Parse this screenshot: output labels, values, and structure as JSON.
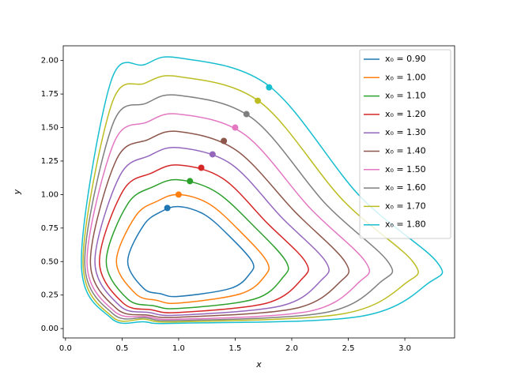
{
  "chart_data": {
    "type": "line",
    "xlabel": "x",
    "ylabel": "y",
    "xlim": [
      -0.02,
      3.44
    ],
    "ylim": [
      -0.07,
      2.11
    ],
    "xticks": [
      {
        "value": 0,
        "label": "0.0"
      },
      {
        "value": 0.5,
        "label": "0.5"
      },
      {
        "value": 1,
        "label": "1.0"
      },
      {
        "value": 1.5,
        "label": "1.5"
      },
      {
        "value": 2,
        "label": "2.0"
      },
      {
        "value": 2.5,
        "label": "2.5"
      },
      {
        "value": 3,
        "label": "3.0"
      }
    ],
    "yticks": [
      {
        "value": 0,
        "label": "0.00"
      },
      {
        "value": 0.25,
        "label": "0.25"
      },
      {
        "value": 0.5,
        "label": "0.50"
      },
      {
        "value": 0.75,
        "label": "0.75"
      },
      {
        "value": 1,
        "label": "1.00"
      },
      {
        "value": 1.25,
        "label": "1.25"
      },
      {
        "value": 1.5,
        "label": "1.50"
      },
      {
        "value": 1.75,
        "label": "1.75"
      },
      {
        "value": 2,
        "label": "2.00"
      }
    ],
    "legend": "upper right",
    "series": [
      {
        "name": "x₀ = 0.90",
        "color": "#1f77b4",
        "start": {
          "x": 0.9,
          "y": 0.9
        },
        "x": [
          1,
          1.23,
          1.46,
          1.65,
          1.63,
          1.46,
          1,
          0.84,
          0.69,
          0.55,
          0.69,
          0.84
        ],
        "values": [
          0.91,
          0.85,
          0.68,
          0.5,
          0.41,
          0.3,
          0.24,
          0.26,
          0.3,
          0.5,
          0.77,
          0.87
        ]
      },
      {
        "name": "x₀ = 1.00",
        "color": "#ff7f0e",
        "start": {
          "x": 1.0,
          "y": 1.0
        },
        "x": [
          1,
          1.27,
          1.55,
          1.78,
          1.76,
          1.55,
          1,
          0.81,
          0.62,
          0.45,
          0.62,
          0.81
        ],
        "values": [
          1.0,
          0.93,
          0.72,
          0.5,
          0.39,
          0.26,
          0.19,
          0.21,
          0.26,
          0.5,
          0.84,
          0.95
        ]
      },
      {
        "name": "x₀ = 1.10",
        "color": "#2ca02c",
        "start": {
          "x": 1.1,
          "y": 1.1
        },
        "x": [
          1,
          1.33,
          1.67,
          1.95,
          1.92,
          1.67,
          1,
          0.78,
          0.55,
          0.36,
          0.55,
          0.78
        ],
        "values": [
          1.11,
          1.02,
          0.76,
          0.5,
          0.38,
          0.22,
          0.15,
          0.17,
          0.22,
          0.5,
          0.93,
          1.06
        ]
      },
      {
        "name": "x₀ = 1.20",
        "color": "#d62728",
        "start": {
          "x": 1.2,
          "y": 1.2
        },
        "x": [
          1,
          1.39,
          1.78,
          2.12,
          2.09,
          1.78,
          1,
          0.76,
          0.51,
          0.3,
          0.51,
          0.76
        ],
        "values": [
          1.22,
          1.12,
          0.79,
          0.5,
          0.37,
          0.19,
          0.12,
          0.14,
          0.19,
          0.5,
          1.03,
          1.16
        ]
      },
      {
        "name": "x₀ = 1.30",
        "color": "#9467bd",
        "start": {
          "x": 1.3,
          "y": 1.3
        },
        "x": [
          1,
          1.46,
          1.91,
          2.3,
          2.26,
          1.91,
          1,
          0.74,
          0.48,
          0.26,
          0.48,
          0.74
        ],
        "values": [
          1.35,
          1.23,
          0.83,
          0.5,
          0.36,
          0.17,
          0.1,
          0.12,
          0.17,
          0.5,
          1.14,
          1.29
        ]
      },
      {
        "name": "x₀ = 1.40",
        "color": "#8c564b",
        "start": {
          "x": 1.4,
          "y": 1.4
        },
        "x": [
          1,
          1.51,
          2.03,
          2.47,
          2.43,
          2.03,
          1,
          0.73,
          0.45,
          0.22,
          0.45,
          0.73
        ],
        "values": [
          1.47,
          1.33,
          0.87,
          0.5,
          0.35,
          0.15,
          0.085,
          0.1,
          0.15,
          0.5,
          1.26,
          1.41
        ]
      },
      {
        "name": "x₀ = 1.50",
        "color": "#e377c2",
        "start": {
          "x": 1.5,
          "y": 1.5
        },
        "x": [
          1,
          1.58,
          2.16,
          2.65,
          2.6,
          2.16,
          1,
          0.72,
          0.43,
          0.19,
          0.43,
          0.72
        ],
        "values": [
          1.6,
          1.45,
          0.9,
          0.5,
          0.35,
          0.13,
          0.07,
          0.09,
          0.13,
          0.5,
          1.39,
          1.54
        ]
      },
      {
        "name": "x₀ = 1.60",
        "color": "#7f7f7f",
        "start": {
          "x": 1.6,
          "y": 1.6
        },
        "x": [
          1,
          1.65,
          2.3,
          2.85,
          2.79,
          2.3,
          1,
          0.71,
          0.42,
          0.17,
          0.42,
          0.71
        ],
        "values": [
          1.74,
          1.57,
          0.93,
          0.5,
          0.35,
          0.12,
          0.06,
          0.08,
          0.11,
          0.5,
          1.53,
          1.68
        ]
      },
      {
        "name": "x₀ = 1.70",
        "color": "#bcbd22",
        "start": {
          "x": 1.7,
          "y": 1.7
        },
        "x": [
          1,
          1.72,
          2.45,
          3.07,
          3.01,
          2.45,
          1,
          0.7,
          0.41,
          0.155,
          0.41,
          0.7
        ],
        "values": [
          1.88,
          1.69,
          0.96,
          0.5,
          0.34,
          0.11,
          0.05,
          0.07,
          0.09,
          0.5,
          1.68,
          1.83
        ]
      },
      {
        "name": "x₀ = 1.80",
        "color": "#17becf",
        "start": {
          "x": 1.8,
          "y": 1.8
        },
        "x": [
          1,
          1.8,
          2.6,
          3.28,
          3.21,
          2.6,
          1,
          0.7,
          0.4,
          0.14,
          0.4,
          0.7
        ],
        "values": [
          2.02,
          1.81,
          0.99,
          0.5,
          0.34,
          0.09,
          0.04,
          0.05,
          0.08,
          0.5,
          1.84,
          1.97
        ]
      }
    ]
  }
}
